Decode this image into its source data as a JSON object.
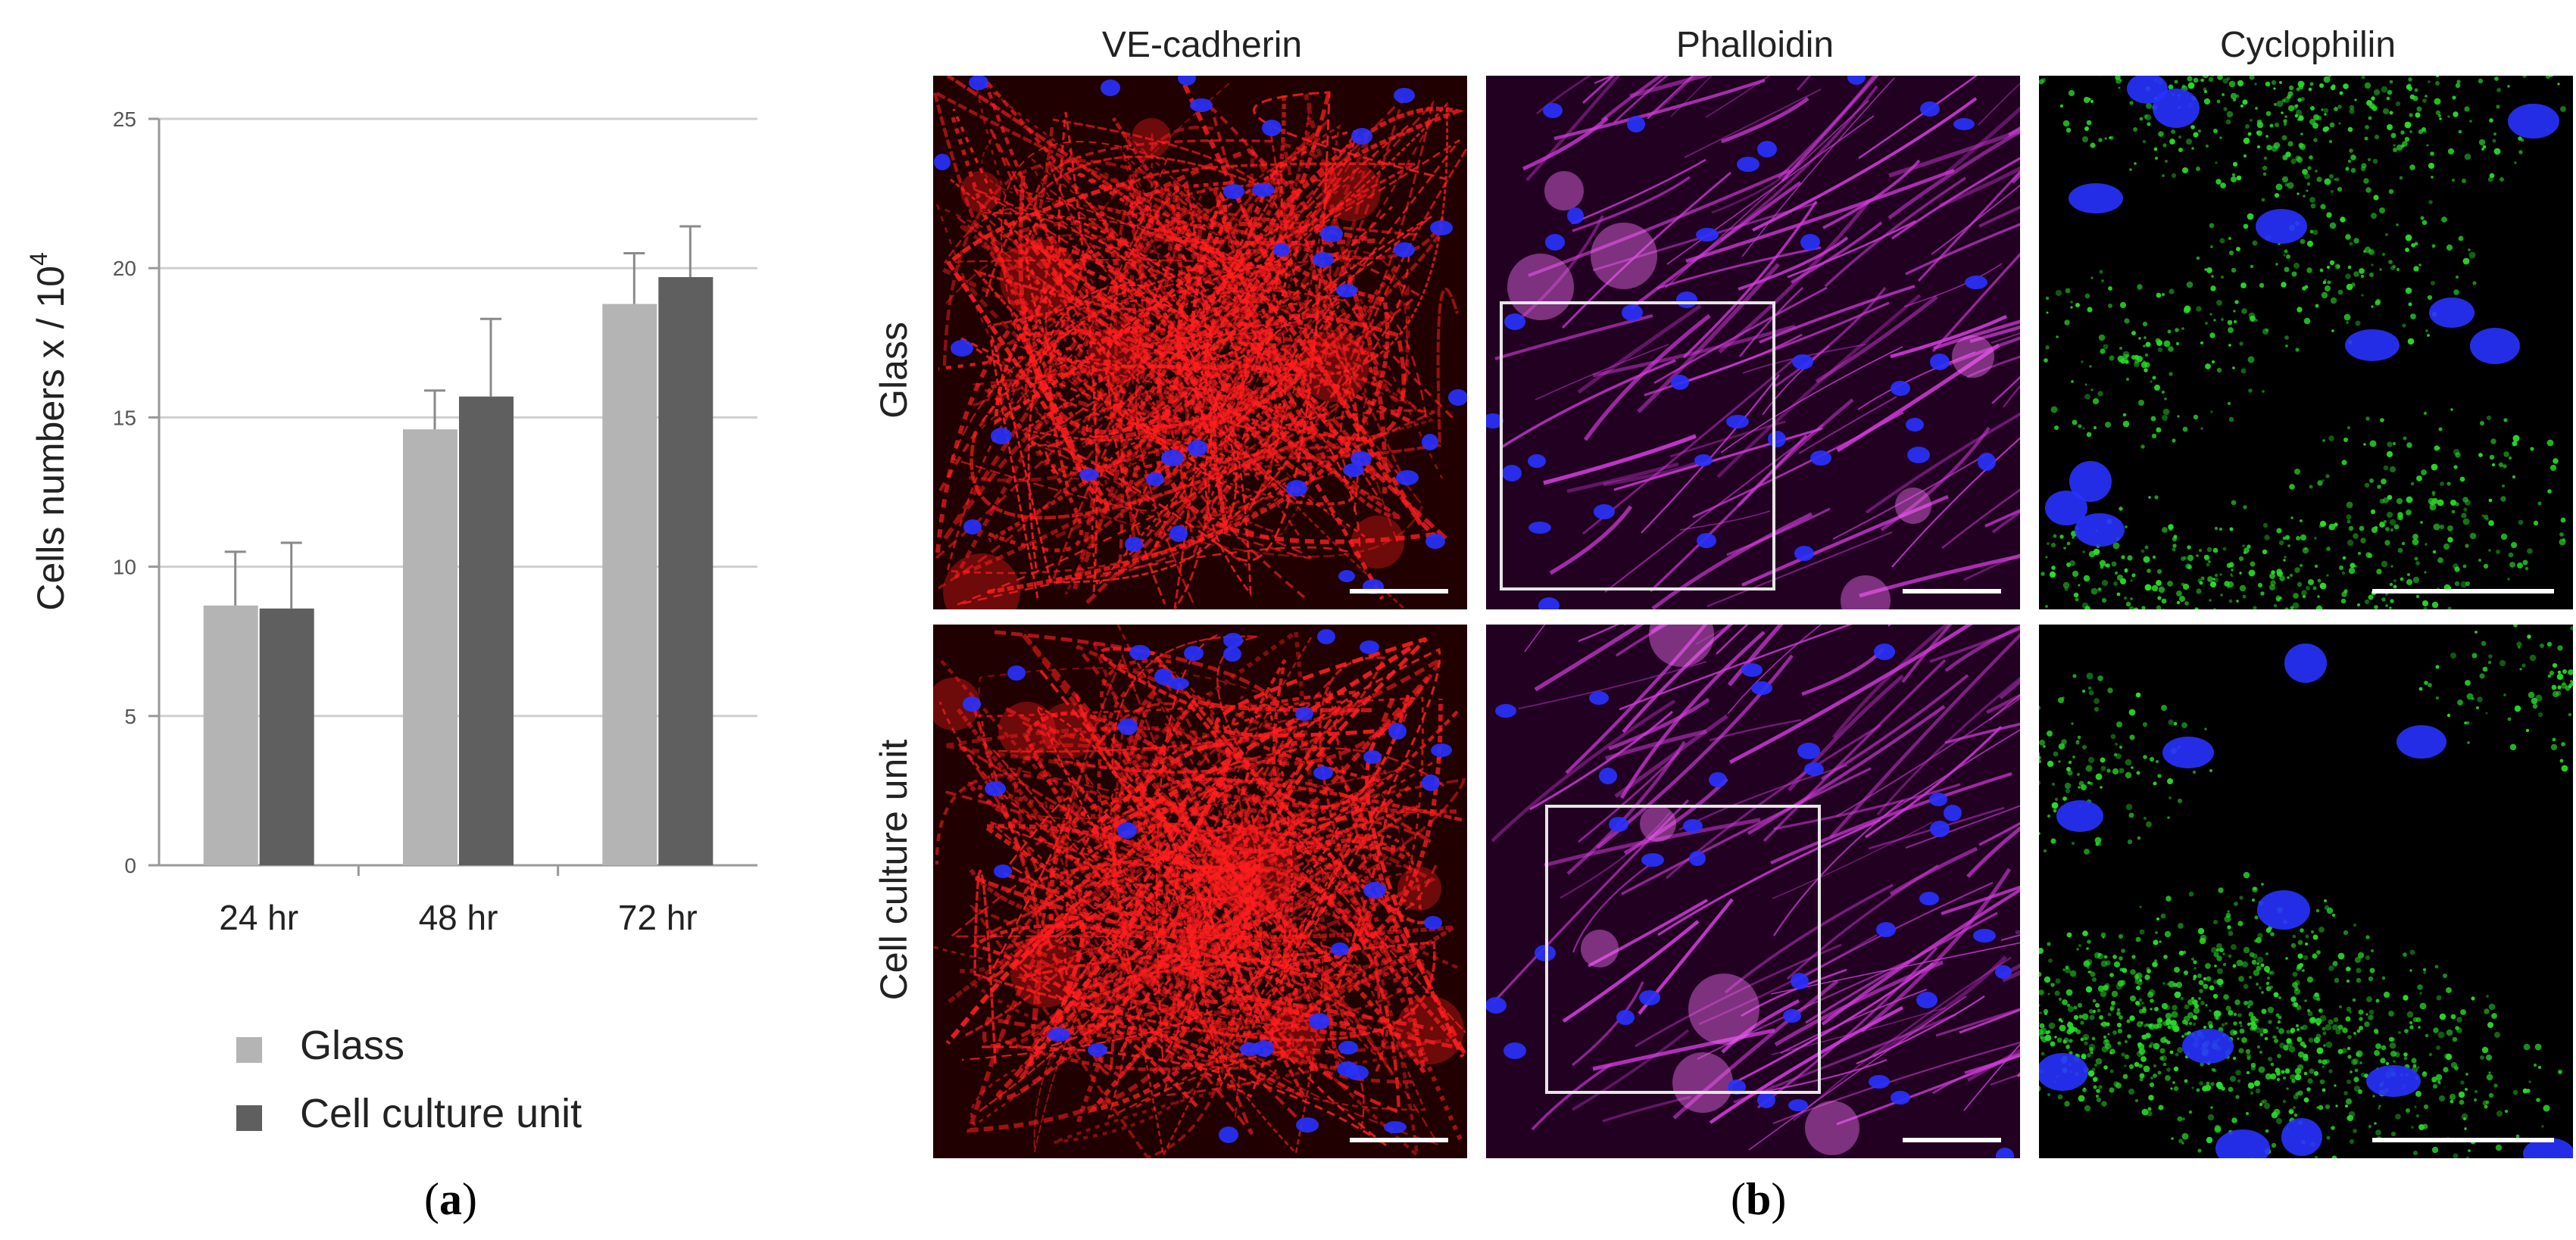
{
  "panel_labels": {
    "a_letter": "a",
    "b_letter": "b"
  },
  "legend": [
    {
      "label": "Glass",
      "color": "#b4b4b4"
    },
    {
      "label": "Cell culture unit",
      "color": "#5f5f5f"
    }
  ],
  "chart_data": {
    "type": "bar",
    "categories": [
      "24 hr",
      "48 hr",
      "72 hr"
    ],
    "series": [
      {
        "name": "Glass",
        "values": [
          8.7,
          14.6,
          18.8
        ],
        "errors": [
          1.8,
          1.3,
          1.7
        ],
        "color": "#b4b4b4"
      },
      {
        "name": "Cell culture unit",
        "values": [
          8.6,
          15.7,
          19.7
        ],
        "errors": [
          2.2,
          2.6,
          1.7
        ],
        "color": "#5f5f5f"
      }
    ],
    "ylabel": "Cells numbers x / 10",
    "ylabel_superscript": "4",
    "ylim": [
      0,
      25
    ],
    "yticks": [
      0,
      5,
      10,
      15,
      20,
      25
    ],
    "grid": true,
    "legend_position": "bottom"
  },
  "microscopy": {
    "columns": [
      "VE-cadherin",
      "Phalloidin",
      "Cyclophilin"
    ],
    "rows": [
      "Glass",
      "Cell culture unit"
    ],
    "stain_colors": {
      "VE-cadherin": "#ff1e1e",
      "Phalloidin": "#d23cdc",
      "Cyclophilin": "#28dc28",
      "nuclei": "#2832ff"
    }
  }
}
